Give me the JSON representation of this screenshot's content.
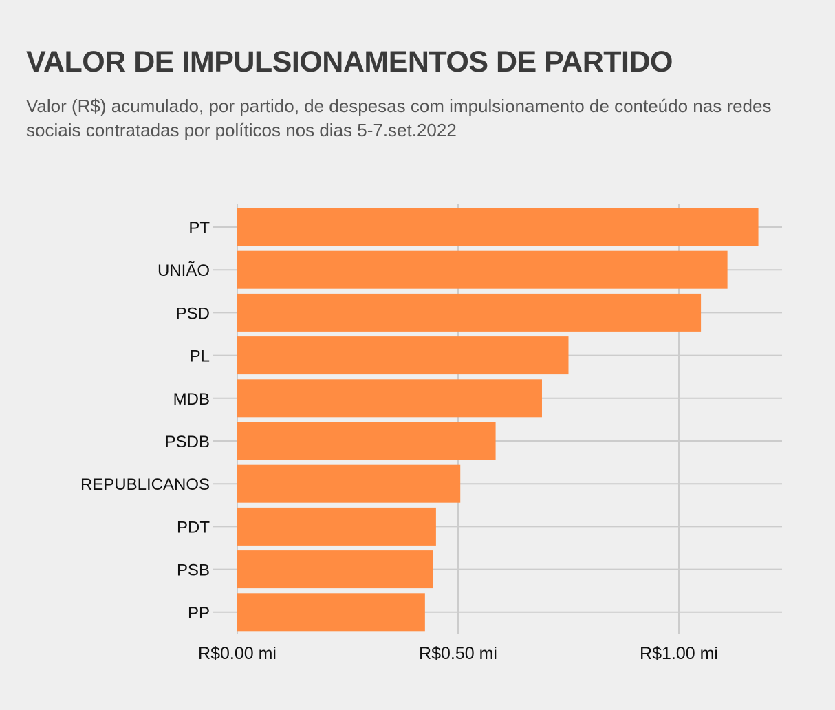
{
  "title": "VALOR DE IMPULSIONAMENTOS DE PARTIDO",
  "subtitle": "Valor (R$) acumulado, por partido, de despesas com impulsionamento de conteúdo nas redes sociais contratadas por políticos nos dias 5-7.set.2022",
  "colors": {
    "bar": "#ff8c42",
    "grid": "#cccccc",
    "background": "#efefef"
  },
  "chart_data": {
    "type": "bar",
    "orientation": "horizontal",
    "title": "VALOR DE IMPULSIONAMENTOS DE PARTIDO",
    "subtitle": "Valor (R$) acumulado, por partido, de despesas com impulsionamento de conteúdo nas redes sociais contratadas por políticos nos dias 5-7.set.2022",
    "categories": [
      "PT",
      "UNIÃO",
      "PSD",
      "PL",
      "MDB",
      "PSDB",
      "REPUBLICANOS",
      "PDT",
      "PSB",
      "PP"
    ],
    "values": [
      1.18,
      1.11,
      1.05,
      0.75,
      0.69,
      0.585,
      0.505,
      0.45,
      0.443,
      0.425
    ],
    "unit": "R$ mi",
    "xlim": [
      0,
      1.23
    ],
    "xticks": [
      0,
      0.5,
      1.0
    ],
    "xtick_labels": [
      "R$0.00 mi",
      "R$0.50 mi",
      "R$1.00 mi"
    ],
    "xlabel": "",
    "ylabel": "",
    "grid": true,
    "legend": "none"
  }
}
